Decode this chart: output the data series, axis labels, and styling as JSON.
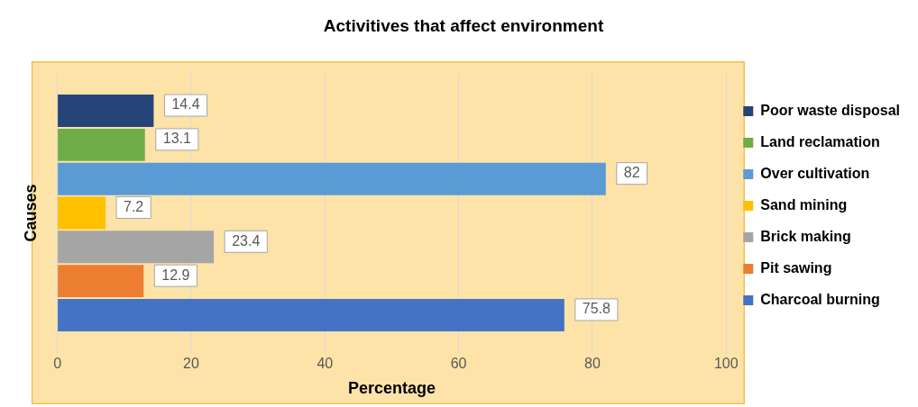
{
  "chart_data": {
    "type": "bar",
    "orientation": "horizontal",
    "title": "Activitives that affect environment",
    "xlabel": "Percentage",
    "ylabel": "Causes",
    "categories": [
      null
    ],
    "series": [
      {
        "name": "Poor waste disposal",
        "color": "#264478",
        "values": [
          14.4
        ]
      },
      {
        "name": "Land reclamation",
        "color": "#70ad47",
        "values": [
          13.1
        ]
      },
      {
        "name": "Over cultivation",
        "color": "#5b9bd5",
        "values": [
          82
        ]
      },
      {
        "name": "Sand mining",
        "color": "#ffc000",
        "values": [
          7.2
        ]
      },
      {
        "name": "Brick making",
        "color": "#a5a5a5",
        "values": [
          23.4
        ]
      },
      {
        "name": "Pit sawing",
        "color": "#ed7d31",
        "values": [
          12.9
        ]
      },
      {
        "name": "Charcoal burning",
        "color": "#4472c4",
        "values": [
          75.8
        ]
      }
    ],
    "xlim": [
      0,
      100
    ],
    "xticks": [
      0,
      20,
      40,
      60,
      80,
      100
    ],
    "grid": "x",
    "legend": "right",
    "data_labels": true
  }
}
